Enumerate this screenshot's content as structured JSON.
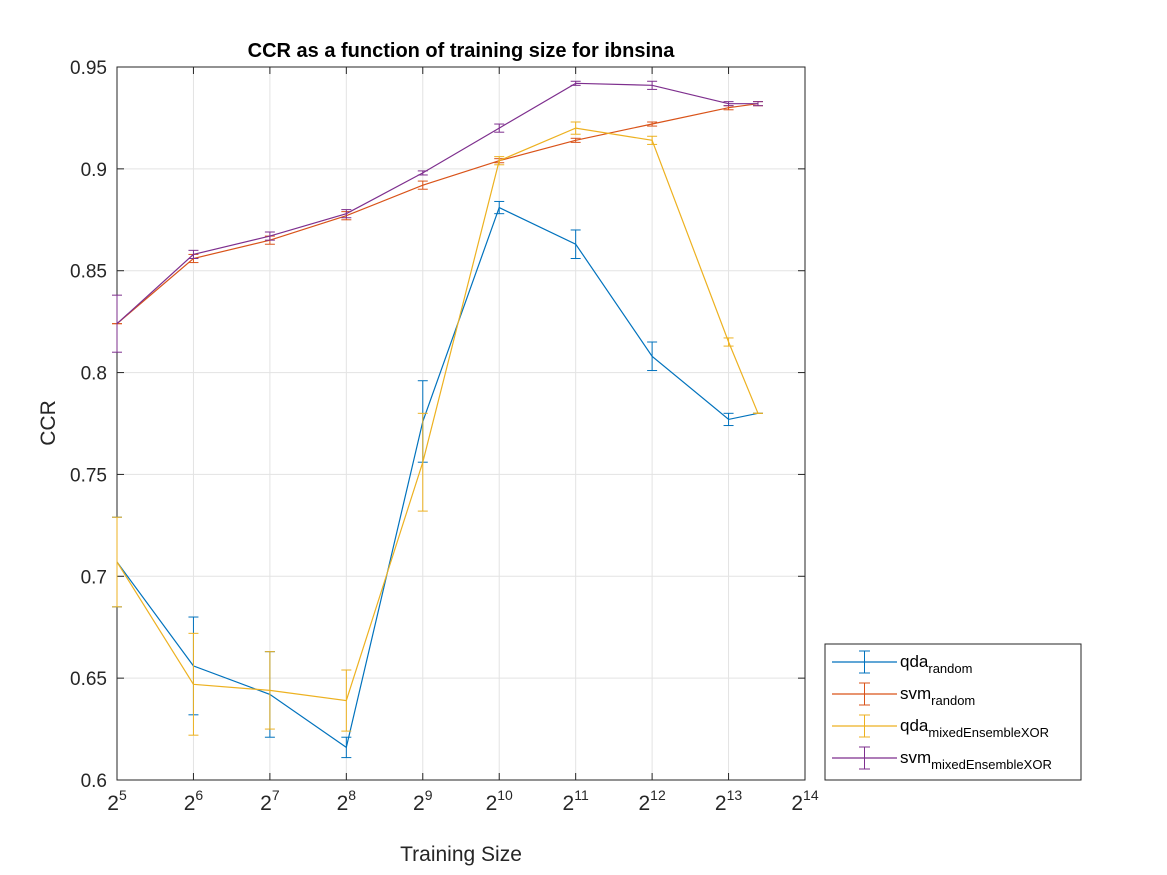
{
  "chart_data": {
    "type": "line",
    "title": "CCR as a function of training size for ibnsina",
    "xlabel": "Training Size",
    "ylabel": "CCR",
    "x_scale": "log2",
    "xlim_exp": [
      5,
      14
    ],
    "xticks": [
      {
        "base": "2",
        "exp": "5"
      },
      {
        "base": "2",
        "exp": "6"
      },
      {
        "base": "2",
        "exp": "7"
      },
      {
        "base": "2",
        "exp": "8"
      },
      {
        "base": "2",
        "exp": "9"
      },
      {
        "base": "2",
        "exp": "10"
      },
      {
        "base": "2",
        "exp": "11"
      },
      {
        "base": "2",
        "exp": "12"
      },
      {
        "base": "2",
        "exp": "13"
      },
      {
        "base": "2",
        "exp": "14"
      }
    ],
    "ylim": [
      0.6,
      0.95
    ],
    "yticks": [
      "0.6",
      "0.65",
      "0.7",
      "0.75",
      "0.8",
      "0.85",
      "0.9",
      "0.95"
    ],
    "grid": true,
    "legend_position": "bottom-right, outside plot area",
    "series": [
      {
        "name": "qda",
        "subscript": "random",
        "color": "#0072BD",
        "x": [
          32,
          64,
          128,
          256,
          512,
          1024,
          2048,
          4096,
          8192,
          10700
        ],
        "y": [
          0.707,
          0.656,
          0.642,
          0.616,
          0.776,
          0.881,
          0.863,
          0.808,
          0.777,
          0.78
        ],
        "err": [
          0.022,
          0.024,
          0.021,
          0.005,
          0.02,
          0.003,
          0.007,
          0.007,
          0.003,
          0.0
        ]
      },
      {
        "name": "svm",
        "subscript": "random",
        "color": "#D95319",
        "x": [
          32,
          64,
          128,
          256,
          512,
          1024,
          2048,
          4096,
          8192,
          10700
        ],
        "y": [
          0.824,
          0.856,
          0.865,
          0.877,
          0.892,
          0.904,
          0.914,
          0.922,
          0.93,
          0.932
        ],
        "err": [
          0.0,
          0.002,
          0.002,
          0.002,
          0.002,
          0.001,
          0.001,
          0.001,
          0.001,
          0.001
        ]
      },
      {
        "name": "qda",
        "subscript": "mixedEnsembleXOR",
        "color": "#EDB120",
        "x": [
          32,
          64,
          128,
          256,
          512,
          1024,
          2048,
          4096,
          8192,
          10700
        ],
        "y": [
          0.707,
          0.647,
          0.644,
          0.639,
          0.756,
          0.904,
          0.92,
          0.914,
          0.815,
          0.78
        ],
        "err": [
          0.022,
          0.025,
          0.019,
          0.015,
          0.024,
          0.002,
          0.003,
          0.002,
          0.002,
          0.0
        ]
      },
      {
        "name": "svm",
        "subscript": "mixedEnsembleXOR",
        "color": "#7E2F8E",
        "x": [
          32,
          64,
          128,
          256,
          512,
          1024,
          2048,
          4096,
          8192,
          10700
        ],
        "y": [
          0.824,
          0.858,
          0.867,
          0.878,
          0.898,
          0.92,
          0.942,
          0.941,
          0.932,
          0.932
        ],
        "err": [
          0.014,
          0.002,
          0.002,
          0.002,
          0.001,
          0.002,
          0.001,
          0.002,
          0.001,
          0.001
        ]
      }
    ]
  }
}
